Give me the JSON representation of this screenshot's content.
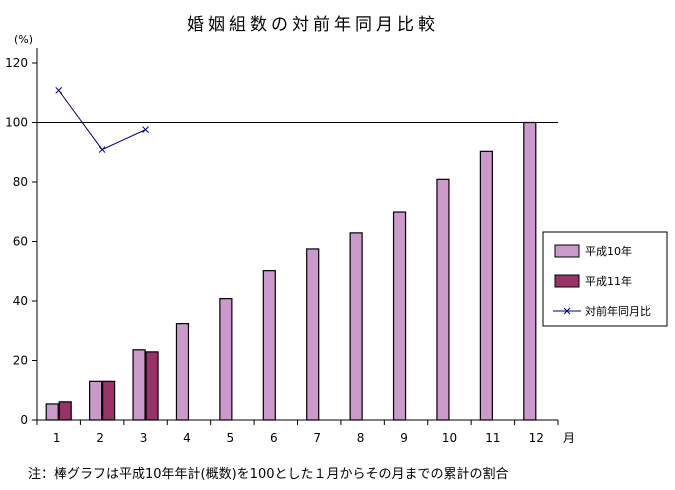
{
  "chart_data": {
    "type": "bar",
    "title": "婚姻組数の対前年同月比較",
    "ylabel": "(%)",
    "xlabel": "月",
    "ylim": [
      0,
      120
    ],
    "yticks": [
      0,
      20,
      40,
      60,
      80,
      100,
      120
    ],
    "reference_line": 100,
    "categories": [
      "1",
      "2",
      "3",
      "4",
      "5",
      "6",
      "7",
      "8",
      "9",
      "10",
      "11",
      "12"
    ],
    "series": [
      {
        "name": "平成10年",
        "type": "bar",
        "color": "#cc99cc",
        "values": [
          5.4,
          13.0,
          23.6,
          32.4,
          40.8,
          50.2,
          57.5,
          62.9,
          69.9,
          80.9,
          90.3,
          100
        ]
      },
      {
        "name": "平成11年",
        "type": "bar",
        "color": "#993366",
        "values": [
          6.1,
          13.0,
          22.9,
          null,
          null,
          null,
          null,
          null,
          null,
          null,
          null,
          null
        ]
      },
      {
        "name": "対前年同月比",
        "type": "line",
        "color": "#000080",
        "marker": "x",
        "values": [
          110.8,
          90.9,
          97.6,
          null,
          null,
          null,
          null,
          null,
          null,
          null,
          null,
          null
        ]
      }
    ],
    "legend_position": "right",
    "note": "注：棒グラフは平成10年年計(概数)を100とした１月からその月までの累計の割合"
  }
}
